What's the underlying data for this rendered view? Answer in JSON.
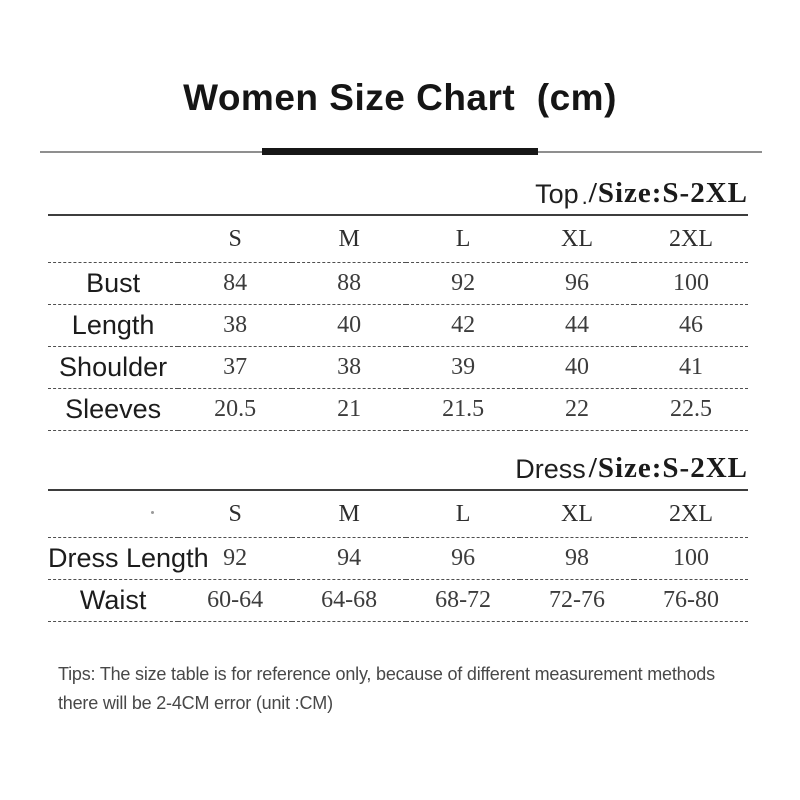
{
  "title": "Women Size Chart  (cm)",
  "top_section": {
    "name": "Top",
    "dot": ".",
    "size": "/Size:S-2XL"
  },
  "dress_section": {
    "name": "Dress",
    "size": "/Size:S-2XL"
  },
  "top_table": {
    "headers": [
      "S",
      "M",
      "L",
      "XL",
      "2XL"
    ],
    "rows": [
      {
        "label": "Bust",
        "values": [
          84,
          88,
          92,
          96,
          100
        ]
      },
      {
        "label": "Length",
        "values": [
          38,
          40,
          42,
          44,
          46
        ]
      },
      {
        "label": "Shoulder",
        "values": [
          37,
          38,
          39,
          40,
          41
        ]
      },
      {
        "label": "Sleeves",
        "values": [
          20.5,
          21,
          21.5,
          22,
          22.5
        ]
      }
    ]
  },
  "dress_table": {
    "headers": [
      "S",
      "M",
      "L",
      "XL",
      "2XL"
    ],
    "rows": [
      {
        "label": "Dress Length",
        "values": [
          92,
          94,
          96,
          98,
          100
        ]
      },
      {
        "label": "Waist",
        "values": [
          "60-64",
          "64-68",
          "68-72",
          "72-76",
          "76-80"
        ]
      }
    ]
  },
  "tips": {
    "line1": "Tips: The size table is for reference only, because of different measurement methods",
    "line2": "there will be 2-4CM error (unit :CM)"
  }
}
